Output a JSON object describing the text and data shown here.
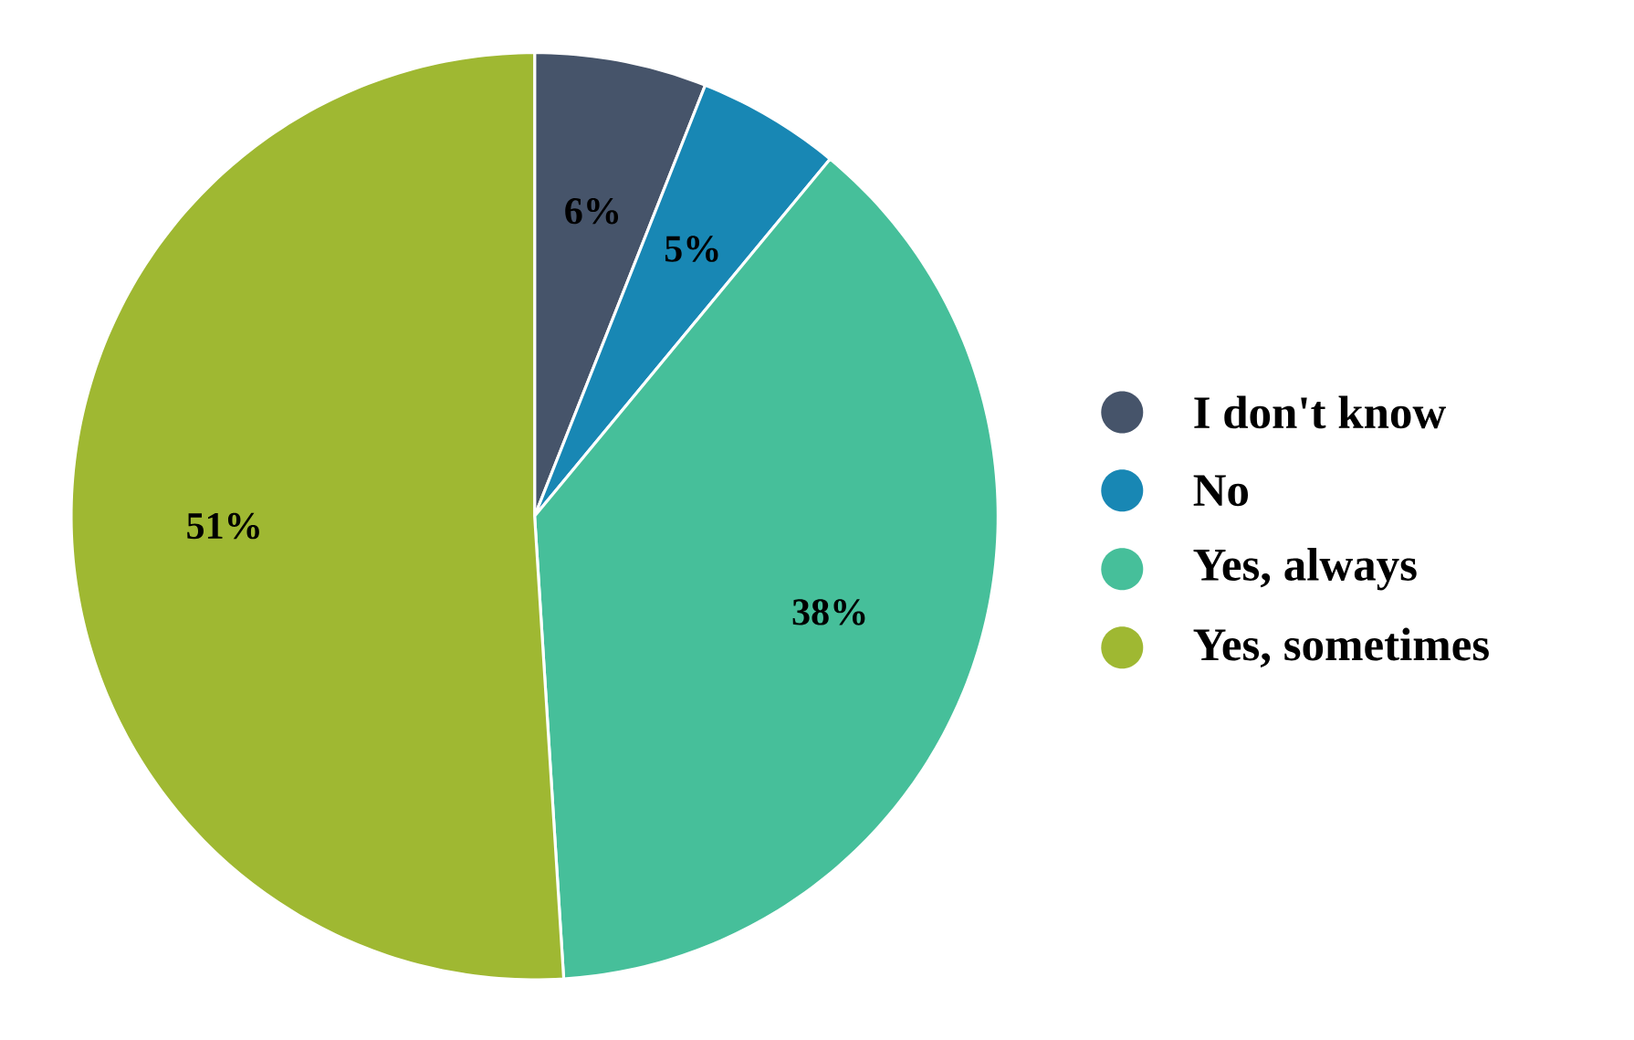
{
  "chart_data": {
    "type": "pie",
    "categories": [
      "I don't know",
      "No",
      "Yes, always",
      "Yes, sometimes"
    ],
    "values": [
      6,
      5,
      38,
      51
    ],
    "colors": [
      "#46546a",
      "#1887b4",
      "#46bf9a",
      "#9fb832"
    ],
    "value_labels": [
      "6%",
      "5%",
      "38%",
      "51%"
    ],
    "legend": "right"
  }
}
